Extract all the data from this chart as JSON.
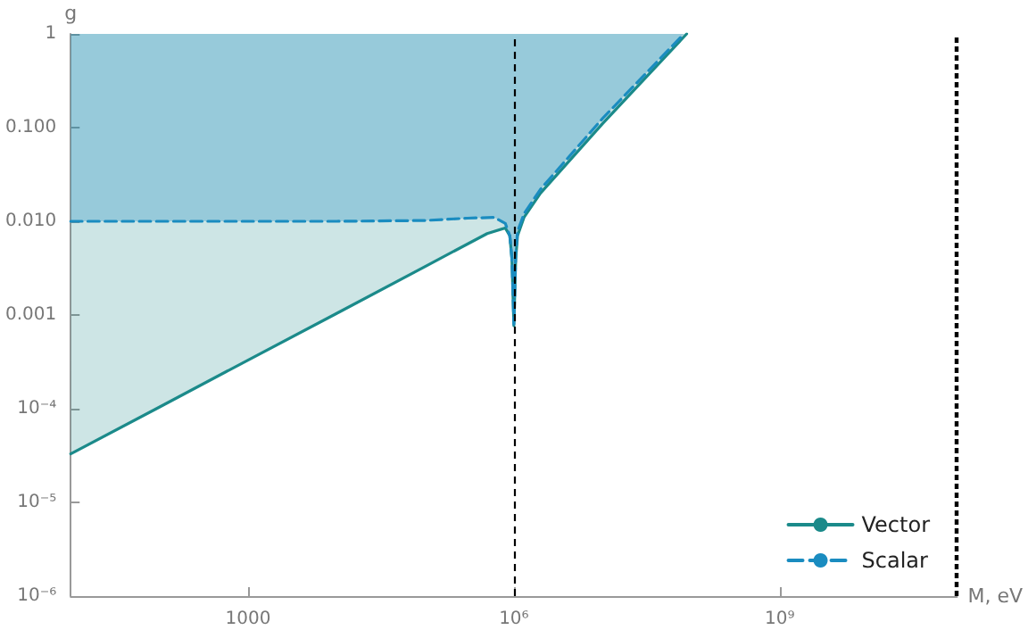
{
  "chart_data": {
    "type": "line",
    "xlabel": "M, eV",
    "ylabel": "g",
    "log": "xy",
    "grid": false,
    "legend": "bottom right",
    "marker": "none",
    "xlim": [
      10,
      100000000000
    ],
    "ylim": [
      1e-06,
      1
    ],
    "xticks": [
      1000,
      {
        "value": 1000000,
        "label": "10⁶"
      },
      {
        "value": 1000000000,
        "label": "10⁹"
      }
    ],
    "yticks": [
      {
        "value": 1e-06,
        "label": "10⁻⁶"
      },
      {
        "value": 1e-05,
        "label": "10⁻⁵"
      },
      {
        "value": 0.0001,
        "label": "10⁻⁴"
      },
      {
        "value": 0.001,
        "label": "0.001"
      },
      {
        "value": 0.01,
        "label": "0.010"
      },
      {
        "value": 0.1,
        "label": "0.100"
      },
      1
    ],
    "series": [
      {
        "name": "Vector",
        "color": "#1b8a8a",
        "line_style": "solid",
        "x": [
          10,
          100,
          1000,
          10000,
          100000,
          500000,
          800000,
          900000,
          950000,
          980000,
          1000000,
          1020000,
          1050000,
          1100000,
          1300000,
          2000000,
          10000000,
          89000000
        ],
        "values": [
          3.3e-05,
          0.000104,
          0.00033,
          0.00104,
          0.0033,
          0.0074,
          0.0085,
          0.007,
          0.004,
          0.0015,
          0.00077,
          0.0015,
          0.004,
          0.007,
          0.011,
          0.02,
          0.11,
          1
        ]
      },
      {
        "name": "Scalar",
        "color": "#1a8cc0",
        "line_style": "dashed",
        "x": [
          10,
          10000,
          100000,
          300000,
          600000,
          800000,
          900000,
          950000,
          980000,
          1000000,
          1020000,
          1050000,
          1100000,
          1300000,
          2000000,
          10000000,
          83000000
        ],
        "values": [
          0.01,
          0.01,
          0.0102,
          0.0108,
          0.011,
          0.0095,
          0.007,
          0.004,
          0.0016,
          0.0008,
          0.0016,
          0.0045,
          0.0078,
          0.012,
          0.022,
          0.125,
          1
        ]
      }
    ],
    "ref_lines": [
      {
        "axis": "x",
        "value": 1000000,
        "color": "#000000",
        "line_style": "dashed"
      },
      {
        "axis": "x",
        "value": 100000000000,
        "color": "#000000",
        "line_style": "dotted"
      }
    ]
  }
}
